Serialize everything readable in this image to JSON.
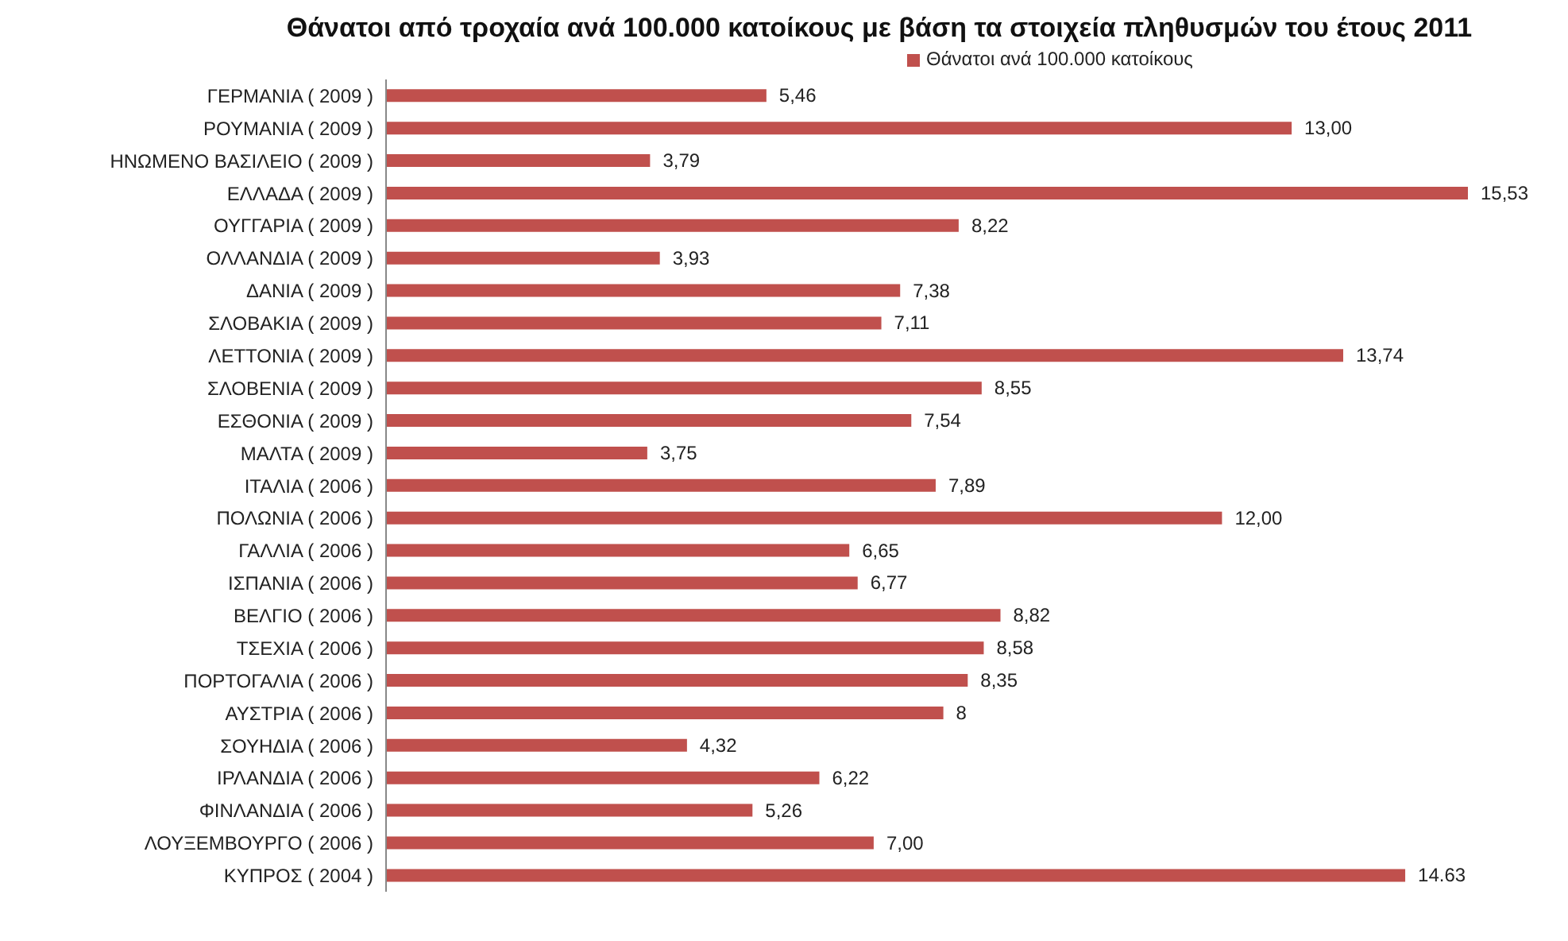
{
  "chart_data": {
    "type": "bar",
    "orientation": "horizontal",
    "title": "Θάνατοι από τροχαία ανά 100.000 κατοίκους με βάση τα στοιχεία πληθυσμών του έτους 2011",
    "categories": [
      "ΓΕΡΜΑΝΙΑ ( 2009 )",
      "ΡΟΥΜΑΝΙΑ ( 2009 )",
      "ΗΝΩΜΕΝΟ ΒΑΣΙΛΕΙΟ ( 2009 )",
      "ΕΛΛΑΔΑ ( 2009 )",
      "ΟΥΓΓΑΡΙΑ ( 2009 )",
      "ΟΛΛΑΝΔΙΑ ( 2009 )",
      "ΔΑΝΙΑ ( 2009 )",
      "ΣΛΟΒΑΚΙΑ ( 2009 )",
      "ΛΕΤΤΟΝΙΑ ( 2009 )",
      "ΣΛΟΒΕΝΙΑ ( 2009 )",
      "ΕΣΘΟΝΙΑ ( 2009 )",
      "ΜΑΛΤΑ ( 2009 )",
      "ΙΤΑΛΙΑ ( 2006 )",
      "ΠΟΛΩΝΙΑ ( 2006 )",
      "ΓΑΛΛΙΑ ( 2006 )",
      "ΙΣΠΑΝΙΑ ( 2006 )",
      "ΒΕΛΓΙΟ ( 2006 )",
      "ΤΣΕΧΙΑ ( 2006 )",
      "ΠΟΡΤΟΓΑΛΙΑ ( 2006 )",
      "ΑΥΣΤΡΙΑ ( 2006 )",
      "ΣΟΥΗΔΙΑ ( 2006 )",
      "ΙΡΛΑΝΔΙΑ ( 2006 )",
      "ΦΙΝΛΑΝΔΙΑ ( 2006 )",
      "ΛΟΥΞΕΜΒΟΥΡΓΟ ( 2006 )",
      "ΚΥΠΡΟΣ ( 2004 )"
    ],
    "series": [
      {
        "name": "Θάνατοι ανά 100.000 κατοίκους",
        "color": "#c0504d",
        "values": [
          5.46,
          13.0,
          3.79,
          15.53,
          8.22,
          3.93,
          7.38,
          7.11,
          13.74,
          8.55,
          7.54,
          3.75,
          7.89,
          12.0,
          6.65,
          6.77,
          8.82,
          8.58,
          8.35,
          8,
          4.32,
          6.22,
          5.26,
          7.0,
          14.63
        ],
        "value_labels": [
          "5,46",
          "13,00",
          "3,79",
          "15,53",
          "8,22",
          "3,93",
          "7,38",
          "7,11",
          "13,74",
          "8,55",
          "7,54",
          "3,75",
          "7,89",
          "12,00",
          "6,65",
          "6,77",
          "8,82",
          "8,58",
          "8,35",
          "8",
          "4,32",
          "6,22",
          "5,26",
          "7,00",
          "14.63"
        ]
      }
    ],
    "legend": "top"
  }
}
